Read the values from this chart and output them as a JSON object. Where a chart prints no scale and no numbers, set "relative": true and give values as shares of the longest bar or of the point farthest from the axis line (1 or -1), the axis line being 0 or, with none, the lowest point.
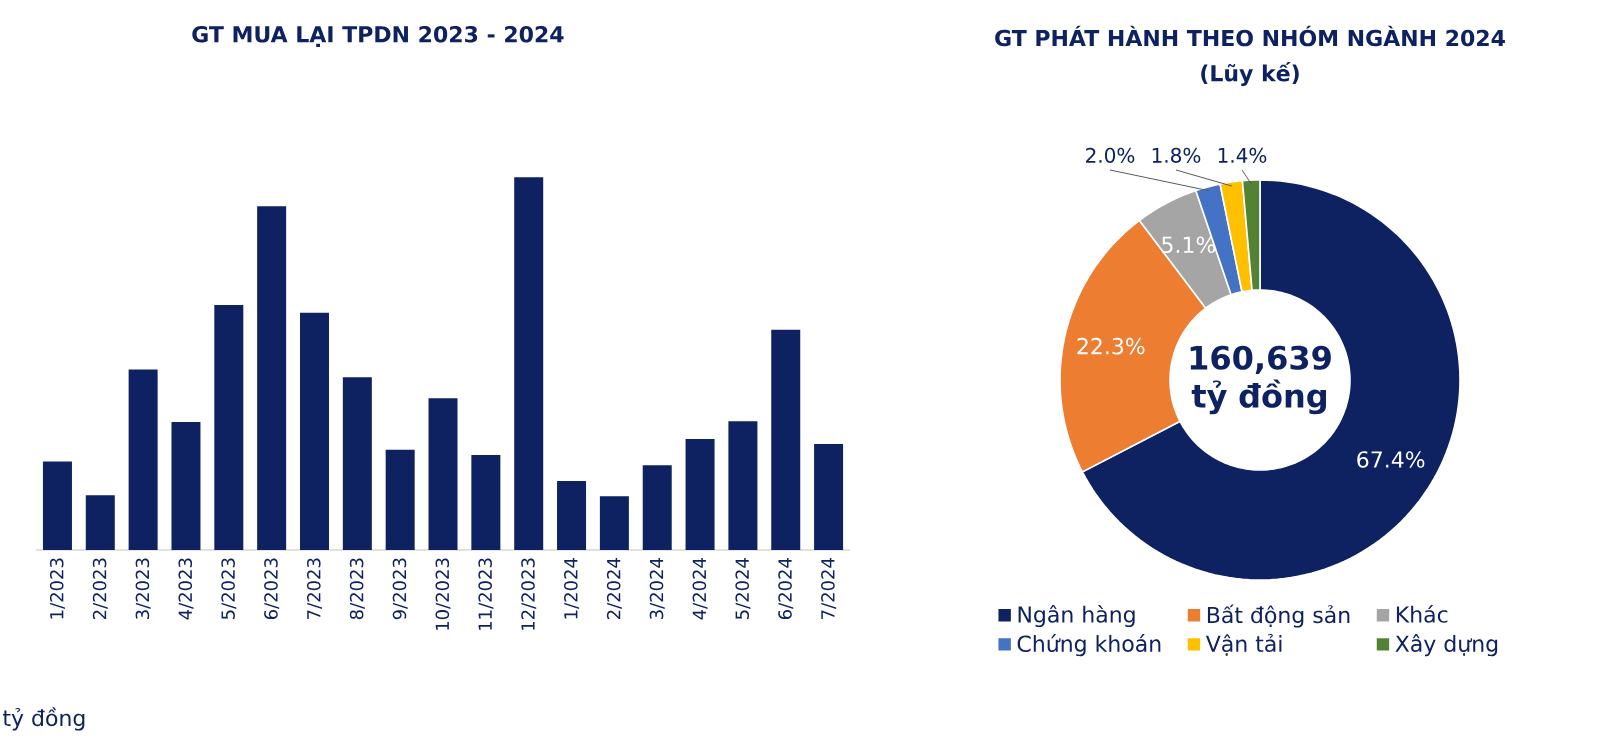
{
  "chart_data": [
    {
      "type": "bar",
      "title": "GT MUA LẠI TPDN 2023 - 2024",
      "categories": [
        "1/2023",
        "2/2023",
        "3/2023",
        "4/2023",
        "5/2023",
        "6/2023",
        "7/2023",
        "8/2023",
        "9/2023",
        "10/2023",
        "11/2023",
        "12/2023",
        "1/2024",
        "2/2024",
        "3/2024",
        "4/2024",
        "5/2024",
        "6/2024",
        "7/2024"
      ],
      "values": [
        0.237,
        0.147,
        0.484,
        0.343,
        0.657,
        0.922,
        0.636,
        0.463,
        0.269,
        0.407,
        0.255,
        1.0,
        0.185,
        0.144,
        0.227,
        0.298,
        0.345,
        0.591,
        0.284
      ],
      "color": "#0e2160",
      "relative": true,
      "annotations": [
        "tỷ đồng"
      ]
    },
    {
      "type": "donut",
      "title": "GT PHÁT HÀNH THEO NHÓM NGÀNH 2024",
      "subtitle": "(Lũy kế)",
      "categories": [
        "Ngân hàng",
        "Bất động sản",
        "Khác",
        "Chứng khoán",
        "Vận tải",
        "Xây dựng"
      ],
      "values": [
        67.4,
        22.3,
        5.1,
        2.0,
        1.8,
        1.4
      ],
      "colors": [
        "#0e2160",
        "#ed7d31",
        "#a5a5a5",
        "#4472c4",
        "#ffc000",
        "#548235"
      ],
      "value_labels": [
        "67.4%",
        "22.3%",
        "5.1%",
        "2.0%",
        "1.8%",
        "1.4%"
      ],
      "legend": "bottom",
      "annotations": [
        "160,639 tỷ đồng"
      ]
    }
  ]
}
